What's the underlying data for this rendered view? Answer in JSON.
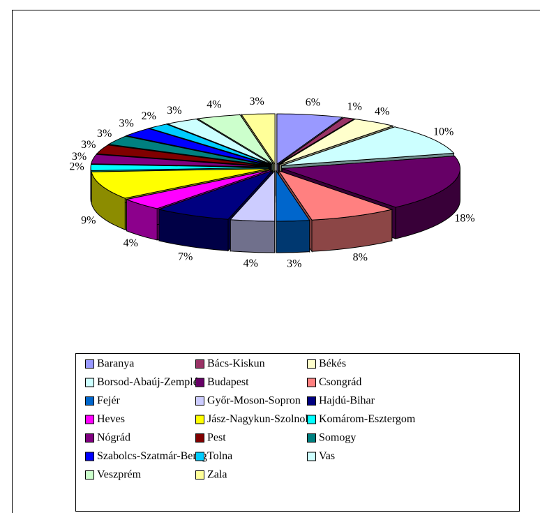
{
  "chart_data": {
    "type": "pie3d",
    "legend": "bottom",
    "series": [
      {
        "name": "Baranya",
        "color": "#9999FF",
        "values": [
          6
        ],
        "value_labels": [
          "6%"
        ]
      },
      {
        "name": "Bács-Kiskun",
        "color": "#993366",
        "values": [
          1
        ],
        "value_labels": [
          "1%"
        ]
      },
      {
        "name": "Békés",
        "color": "#FFFFCC",
        "values": [
          4
        ],
        "value_labels": [
          "4%"
        ]
      },
      {
        "name": "Borsod-Abaúj-Zemplén",
        "color": "#CCFFFF",
        "values": [
          10
        ],
        "value_labels": [
          "10%"
        ]
      },
      {
        "name": "Budapest",
        "color": "#660066",
        "values": [
          18
        ],
        "value_labels": [
          "18%"
        ]
      },
      {
        "name": "Csongrád",
        "color": "#FF8080",
        "values": [
          8
        ],
        "value_labels": [
          "8%"
        ]
      },
      {
        "name": "Fejér",
        "color": "#0066CC",
        "values": [
          3
        ],
        "value_labels": [
          "3%"
        ]
      },
      {
        "name": "Győr-Moson-Sopron",
        "color": "#CCCCFF",
        "values": [
          4
        ],
        "value_labels": [
          "4%"
        ]
      },
      {
        "name": "Hajdú-Bihar",
        "color": "#000080",
        "values": [
          7
        ],
        "value_labels": [
          "7%"
        ]
      },
      {
        "name": "Heves",
        "color": "#FF00FF",
        "values": [
          4
        ],
        "value_labels": [
          "4%"
        ]
      },
      {
        "name": "Jász-Nagykun-Szolnok",
        "color": "#FFFF00",
        "values": [
          9
        ],
        "value_labels": [
          "9%"
        ]
      },
      {
        "name": "Komárom-Esztergom",
        "color": "#00FFFF",
        "values": [
          2
        ],
        "value_labels": [
          "2%"
        ]
      },
      {
        "name": "Nógrád",
        "color": "#800080",
        "values": [
          3
        ],
        "value_labels": [
          "3%"
        ]
      },
      {
        "name": "Pest",
        "color": "#800000",
        "values": [
          3
        ],
        "value_labels": [
          "3%"
        ]
      },
      {
        "name": "Somogy",
        "color": "#008080",
        "values": [
          3
        ],
        "value_labels": [
          "3%"
        ]
      },
      {
        "name": "Szabolcs-Szatmár-Bereg",
        "color": "#0000FF",
        "values": [
          3
        ],
        "value_labels": [
          "3%"
        ]
      },
      {
        "name": "Tolna",
        "color": "#00CCFF",
        "values": [
          2
        ],
        "value_labels": [
          "2%"
        ]
      },
      {
        "name": "Vas",
        "color": "#CCFFFF",
        "values": [
          3
        ],
        "value_labels": [
          "3%"
        ]
      },
      {
        "name": "Veszprém",
        "color": "#CCFFCC",
        "values": [
          4
        ],
        "value_labels": [
          "4%"
        ]
      },
      {
        "name": "Zala",
        "color": "#FFFF99",
        "values": [
          3
        ],
        "value_labels": [
          "3%"
        ]
      }
    ]
  }
}
